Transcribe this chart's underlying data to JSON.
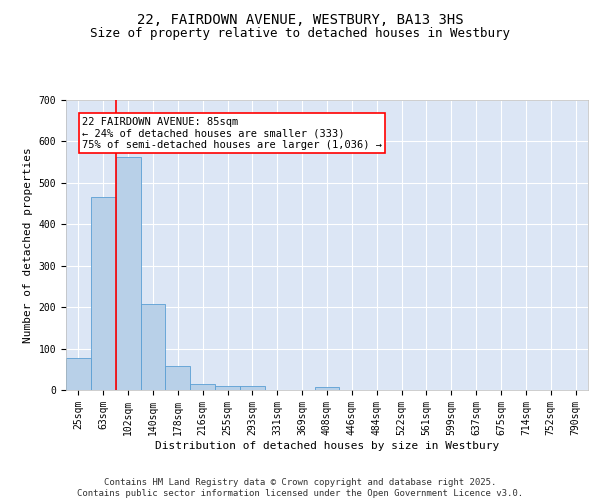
{
  "title_line1": "22, FAIRDOWN AVENUE, WESTBURY, BA13 3HS",
  "title_line2": "Size of property relative to detached houses in Westbury",
  "xlabel": "Distribution of detached houses by size in Westbury",
  "ylabel": "Number of detached properties",
  "categories": [
    "25sqm",
    "63sqm",
    "102sqm",
    "140sqm",
    "178sqm",
    "216sqm",
    "255sqm",
    "293sqm",
    "331sqm",
    "369sqm",
    "408sqm",
    "446sqm",
    "484sqm",
    "522sqm",
    "561sqm",
    "599sqm",
    "637sqm",
    "675sqm",
    "714sqm",
    "752sqm",
    "790sqm"
  ],
  "values": [
    78,
    467,
    562,
    207,
    57,
    14,
    10,
    10,
    0,
    0,
    8,
    0,
    0,
    0,
    0,
    0,
    0,
    0,
    0,
    0,
    0
  ],
  "bar_color": "#b8d0e8",
  "bar_edge_color": "#5a9fd4",
  "vline_x_index": 1.5,
  "annotation_text": "22 FAIRDOWN AVENUE: 85sqm\n← 24% of detached houses are smaller (333)\n75% of semi-detached houses are larger (1,036) →",
  "annotation_box_color": "white",
  "annotation_box_edge_color": "red",
  "vline_color": "red",
  "ylim": [
    0,
    700
  ],
  "yticks": [
    0,
    100,
    200,
    300,
    400,
    500,
    600,
    700
  ],
  "background_color": "#dce6f5",
  "grid_color": "white",
  "footer_text": "Contains HM Land Registry data © Crown copyright and database right 2025.\nContains public sector information licensed under the Open Government Licence v3.0.",
  "title_fontsize": 10,
  "subtitle_fontsize": 9,
  "xlabel_fontsize": 8,
  "ylabel_fontsize": 8,
  "tick_fontsize": 7,
  "annotation_fontsize": 7.5,
  "footer_fontsize": 6.5
}
